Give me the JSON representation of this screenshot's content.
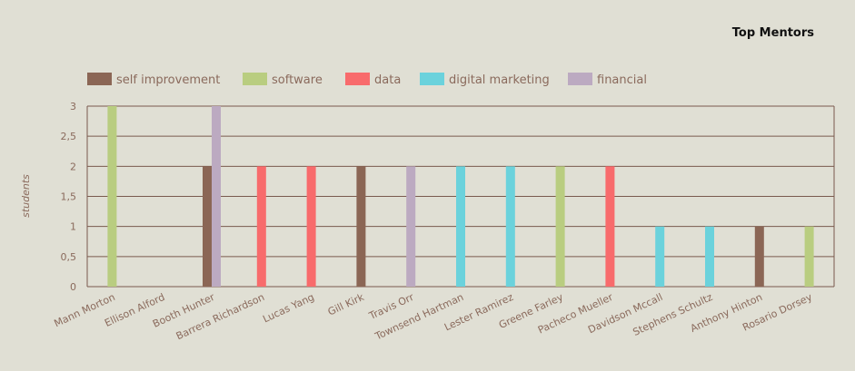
{
  "chart_data": {
    "type": "bar",
    "title": "Top Mentors",
    "ylabel": "students",
    "ylim": [
      0,
      3
    ],
    "yticks": [
      "0",
      "0,5",
      "1",
      "1,5",
      "2",
      "2,5",
      "3"
    ],
    "grid": true,
    "legend_position": "top-left",
    "categories": [
      "Mann Morton",
      "Ellison Alford",
      "Booth Hunter",
      "Barrera Richardson",
      "Lucas Yang",
      "Gill Kirk",
      "Travis Orr",
      "Townsend Hartman",
      "Lester Ramirez",
      "Greene Farley",
      "Pacheco Mueller",
      "Davidson Mccall",
      "Stephens Schultz",
      "Anthony Hinton",
      "Rosario Dorsey"
    ],
    "series": [
      {
        "name": "self improvement",
        "color": "#8b6655",
        "values": [
          0,
          0,
          2,
          0,
          0,
          2,
          0,
          0,
          0,
          0,
          0,
          0,
          0,
          1,
          0
        ]
      },
      {
        "name": "software",
        "color": "#b9cd80",
        "values": [
          3,
          0,
          0,
          0,
          0,
          0,
          0,
          0,
          0,
          2,
          0,
          0,
          0,
          0,
          1
        ]
      },
      {
        "name": "data",
        "color": "#f86b6c",
        "values": [
          0,
          0,
          0,
          2,
          2,
          0,
          0,
          0,
          0,
          0,
          2,
          0,
          0,
          0,
          0
        ]
      },
      {
        "name": "digital marketing",
        "color": "#6bd2dc",
        "values": [
          0,
          0,
          0,
          0,
          0,
          0,
          0,
          2,
          2,
          0,
          0,
          1,
          1,
          0,
          0
        ]
      },
      {
        "name": "financial",
        "color": "#bcaac1",
        "values": [
          0,
          0,
          3,
          0,
          0,
          0,
          2,
          0,
          0,
          0,
          0,
          0,
          0,
          0,
          0
        ]
      }
    ]
  }
}
